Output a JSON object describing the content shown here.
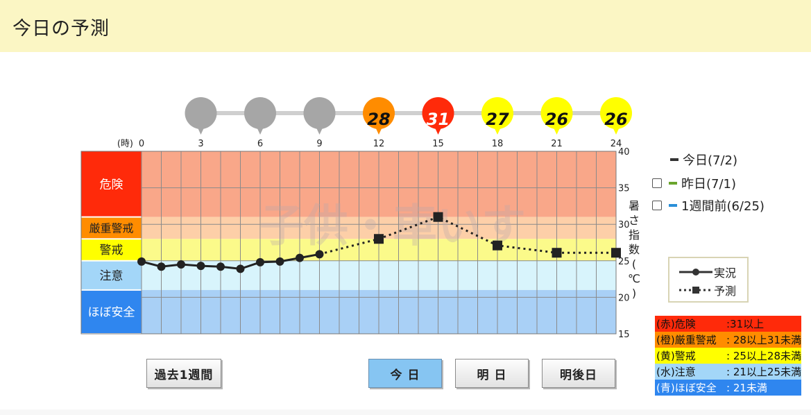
{
  "page_title": "今日の予測",
  "buttons": {
    "past_week": "過去1週間",
    "today": "今 日",
    "tomorrow": "明 日",
    "day_after": "明後日"
  },
  "legend": {
    "today": "今日(7/2)",
    "yesterday": "昨日(7/1)",
    "week_ago": "1週間前(6/25)",
    "today_color": "#333333",
    "yesterday_color": "#6aa52d",
    "week_ago_color": "#2a8fd8"
  },
  "key": {
    "actual": "実況",
    "forecast": "予測"
  },
  "watermark": "子供・車いす",
  "levels": [
    {
      "name": "(赤)危険",
      "desc": ":31以上",
      "color": "#ff2a0a",
      "bg": "#f9a789",
      "min": 31,
      "max": 40
    },
    {
      "name": "(橙)厳重警戒",
      "desc": ": 28以上31未満",
      "color": "#ff8c00",
      "bg": "#fdcfa8",
      "min": 28,
      "max": 31
    },
    {
      "name": "(黄)警戒",
      "desc": ": 25以上28未満",
      "color": "#ffff00",
      "bg": "#fbfa8a",
      "min": 25,
      "max": 28
    },
    {
      "name": "(水)注意",
      "desc": ": 21以上25未満",
      "color": "#a3d6f8",
      "bg": "#d8f4fc",
      "min": 21,
      "max": 25
    },
    {
      "name": "(青)ほぼ安全",
      "desc": ": 21未満",
      "color": "#2f86ef",
      "bg": "#a9d0f6",
      "min": 15,
      "max": 21
    }
  ],
  "band_labels": [
    "危険",
    "厳重警戒",
    "警戒",
    "注意",
    "ほぼ安全"
  ],
  "chart_data": {
    "type": "line",
    "x_unit_label": "(時)",
    "ylabel": "暑さ指数(℃)",
    "xlim": [
      0,
      24
    ],
    "ylim": [
      15,
      40
    ],
    "x_ticks": [
      0,
      3,
      6,
      9,
      12,
      15,
      18,
      21,
      24
    ],
    "y_ticks": [
      15,
      20,
      25,
      30,
      35,
      40
    ],
    "grid": true,
    "series": [
      {
        "name": "実況",
        "style": "solid",
        "x": [
          0,
          1,
          2,
          3,
          4,
          5,
          6,
          7,
          8,
          9
        ],
        "y": [
          24.9,
          24.2,
          24.5,
          24.3,
          24.2,
          23.9,
          24.8,
          24.9,
          25.4,
          25.9
        ]
      },
      {
        "name": "予測",
        "style": "dotted",
        "x": [
          9,
          12,
          15,
          18,
          21,
          24
        ],
        "y": [
          25.9,
          28.0,
          31.0,
          27.1,
          26.1,
          26.1
        ]
      }
    ],
    "markers": [
      {
        "hour": 0,
        "value": null,
        "color": "#a6a6a6"
      },
      {
        "hour": 3,
        "value": null,
        "color": "#a6a6a6"
      },
      {
        "hour": 6,
        "value": null,
        "color": "#a6a6a6"
      },
      {
        "hour": 9,
        "value": null,
        "color": "#a6a6a6"
      },
      {
        "hour": 12,
        "value": "28",
        "color": "#ff8c00"
      },
      {
        "hour": 15,
        "value": "31",
        "color": "#ff2a0a"
      },
      {
        "hour": 18,
        "value": "27",
        "color": "#ffff00"
      },
      {
        "hour": 21,
        "value": "26",
        "color": "#ffff00"
      },
      {
        "hour": 24,
        "value": "26",
        "color": "#ffff00"
      }
    ]
  }
}
